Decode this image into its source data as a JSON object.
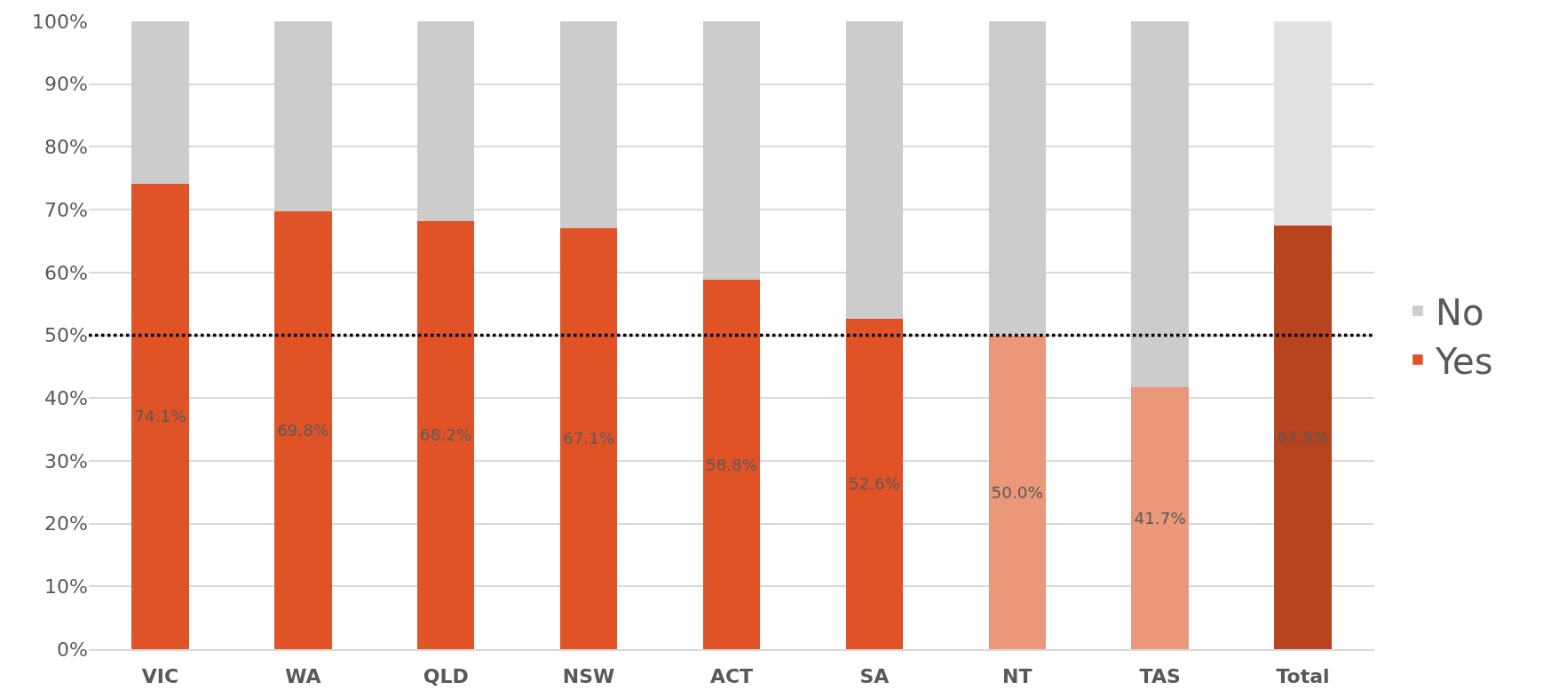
{
  "chart_data": {
    "type": "bar",
    "stacked": true,
    "categories": [
      "VIC",
      "WA",
      "QLD",
      "NSW",
      "ACT",
      "SA",
      "NT",
      "TAS",
      "Total"
    ],
    "series": [
      {
        "name": "Yes",
        "color": "#e05327",
        "colors": [
          "#e05327",
          "#e05327",
          "#e05327",
          "#e05327",
          "#e05327",
          "#e05327",
          "#eb977a",
          "#eb977a",
          "#b8431f"
        ],
        "values": [
          74.1,
          69.8,
          68.2,
          67.1,
          58.8,
          52.6,
          50.0,
          41.7,
          67.5
        ],
        "value_labels": [
          "74.1%",
          "69.8%",
          "68.2%",
          "67.1%",
          "58.8%",
          "52.6%",
          "50.0%",
          "41.7%",
          "67.5%"
        ]
      },
      {
        "name": "No",
        "color": "#cccccc",
        "colors": [
          "#cccccc",
          "#cccccc",
          "#cccccc",
          "#cccccc",
          "#cccccc",
          "#cccccc",
          "#cccccc",
          "#cccccc",
          "#e2e2e2"
        ],
        "values": [
          25.9,
          30.2,
          31.8,
          32.9,
          41.2,
          47.4,
          50.0,
          58.3,
          32.5
        ]
      }
    ],
    "ylim": [
      0,
      100
    ],
    "yticks": [
      {
        "value": 0,
        "label": "0%"
      },
      {
        "value": 10,
        "label": "10%"
      },
      {
        "value": 20,
        "label": "20%"
      },
      {
        "value": 30,
        "label": "30%"
      },
      {
        "value": 40,
        "label": "40%"
      },
      {
        "value": 50,
        "label": "50%"
      },
      {
        "value": 60,
        "label": "60%"
      },
      {
        "value": 70,
        "label": "70%"
      },
      {
        "value": 80,
        "label": "80%"
      },
      {
        "value": 90,
        "label": "90%"
      },
      {
        "value": 100,
        "label": "100%"
      }
    ],
    "grid": "y",
    "legend": "right",
    "ref_lines": [
      {
        "axis": "y",
        "value": 50,
        "color": "#000000",
        "line_style": "dotted"
      }
    ]
  }
}
